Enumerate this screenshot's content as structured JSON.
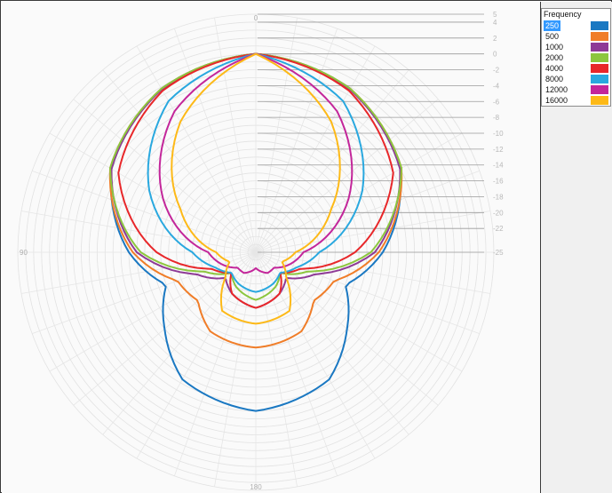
{
  "legend": {
    "title": "Frequency",
    "selected": "250",
    "entries": [
      {
        "label": "250",
        "color": "#1a78c2"
      },
      {
        "label": "500",
        "color": "#f07d28"
      },
      {
        "label": "1000",
        "color": "#8e3a96"
      },
      {
        "label": "2000",
        "color": "#8cc63e"
      },
      {
        "label": "4000",
        "color": "#e8272a"
      },
      {
        "label": "8000",
        "color": "#29a8df"
      },
      {
        "label": "12000",
        "color": "#c3269a"
      },
      {
        "label": "16000",
        "color": "#fdb917"
      }
    ]
  },
  "chart_data": {
    "type": "polar-line",
    "radial_axis": {
      "range": [
        -25,
        5
      ],
      "ticks": [
        "5",
        "4",
        "2",
        "0",
        "-2",
        "-4",
        "-6",
        "-8",
        "-10",
        "-12",
        "-14",
        "-16",
        "-18",
        "-20",
        "-22",
        "-25"
      ]
    },
    "angle_labels": [
      "0",
      "90",
      "180"
    ],
    "grid": true,
    "legend_position": "top-right",
    "series": [
      {
        "name": "250",
        "color": "#1a78c2",
        "angles": [
          0,
          30,
          60,
          90,
          110,
          130,
          150,
          180
        ],
        "values": [
          0,
          -1.2,
          -4,
          -9,
          -13,
          -10,
          -6.5,
          -5
        ]
      },
      {
        "name": "500",
        "color": "#f07d28",
        "angles": [
          0,
          30,
          60,
          90,
          110,
          130,
          150,
          180
        ],
        "values": [
          0,
          -1.2,
          -3.8,
          -9.5,
          -14.5,
          -15.5,
          -13.5,
          -13
        ]
      },
      {
        "name": "1000",
        "color": "#8e3a96",
        "angles": [
          0,
          30,
          60,
          90,
          110,
          130,
          150,
          180
        ],
        "values": [
          0,
          -1.3,
          -4,
          -10,
          -17,
          -20,
          -19,
          -18
        ]
      },
      {
        "name": "2000",
        "color": "#8cc63e",
        "angles": [
          0,
          30,
          60,
          90,
          110,
          130,
          150,
          180
        ],
        "values": [
          0,
          -1.2,
          -3.8,
          -10.5,
          -18,
          -21,
          -20,
          -19
        ]
      },
      {
        "name": "4000",
        "color": "#e8272a",
        "angles": [
          0,
          30,
          60,
          90,
          110,
          130,
          150,
          180
        ],
        "values": [
          0,
          -1.5,
          -5,
          -12.5,
          -19,
          -21,
          -19,
          -18
        ]
      },
      {
        "name": "8000",
        "color": "#29a8df",
        "angles": [
          0,
          30,
          60,
          90,
          110,
          130,
          150,
          180
        ],
        "values": [
          0,
          -3,
          -9.5,
          -17,
          -19.5,
          -21,
          -20.5,
          -20
        ]
      },
      {
        "name": "12000",
        "color": "#c3269a",
        "angles": [
          0,
          30,
          60,
          90,
          110,
          130,
          150,
          180
        ],
        "values": [
          0,
          -4.5,
          -11.5,
          -19,
          -20.5,
          -22,
          -22,
          -23
        ]
      },
      {
        "name": "16000",
        "color": "#fdb917",
        "angles": [
          0,
          30,
          60,
          90,
          110,
          130,
          150,
          180
        ],
        "values": [
          0,
          -6,
          -14,
          -20,
          -21.5,
          -20,
          -16.5,
          -16
        ]
      }
    ]
  }
}
